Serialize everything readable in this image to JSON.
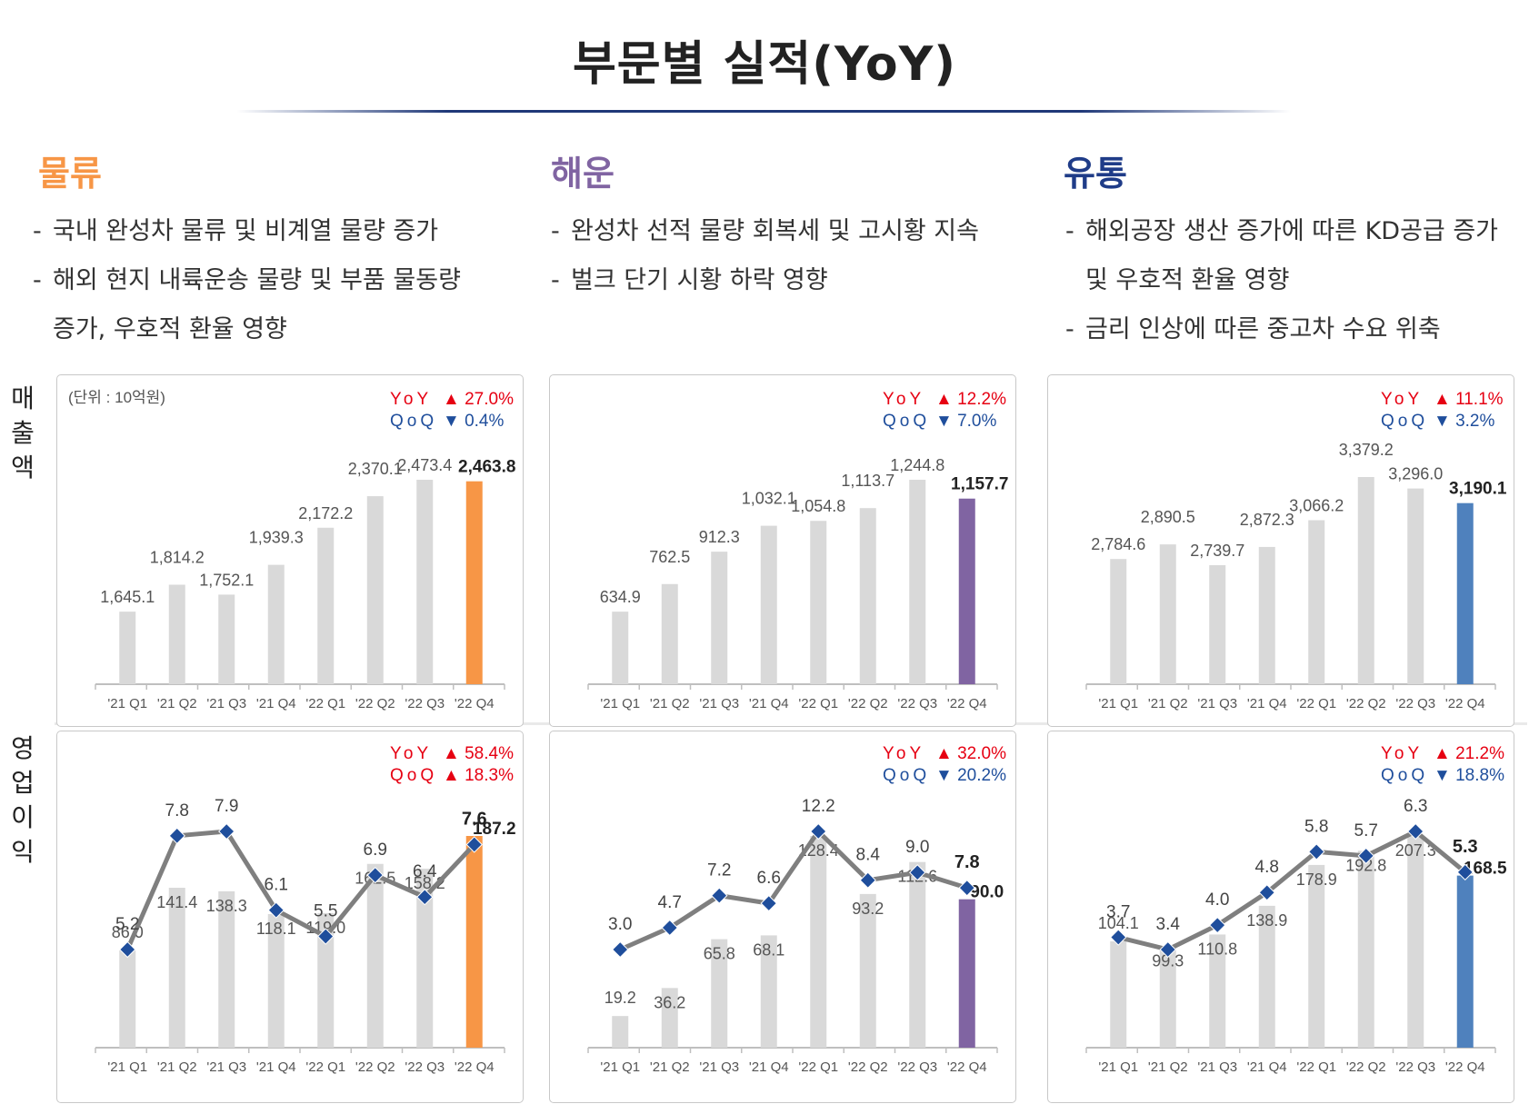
{
  "page": {
    "title": "부문별 실적(YoY)",
    "row_labels": {
      "revenue": "매출액",
      "op_profit": "영업이익"
    },
    "unit_note": "(단위 : 10억원)"
  },
  "segments": [
    {
      "name": "물류",
      "color": "#f79646",
      "bullets": [
        "국내 완성차 물류 및 비계열 물량 증가",
        "해외 현지 내륙운송 물량 및 부품 물동량",
        "증가, 우호적 환율 영향"
      ],
      "bullet_continuation": [
        false,
        false,
        true
      ]
    },
    {
      "name": "해운",
      "color": "#8064a2",
      "bullets": [
        "완성차 선적 물량 회복세 및 고시황 지속",
        "벌크 단기 시황 하락 영향"
      ],
      "bullet_continuation": [
        false,
        false
      ]
    },
    {
      "name": "유통",
      "color": "#1f4e9c",
      "bullets": [
        "해외공장 생산 증가에 따른 KD공급 증가",
        "및 우호적 환율 영향",
        "금리 인상에 따른 중고차 수요 위축"
      ],
      "bullet_continuation": [
        false,
        true,
        false
      ]
    }
  ],
  "chart_data": [
    {
      "id": "logistics-revenue",
      "type": "bar",
      "segment": "물류",
      "categories": [
        "'21 Q1",
        "'21 Q2",
        "'21 Q3",
        "'21 Q4",
        "'22 Q1",
        "'22 Q2",
        "'22 Q3",
        "'22 Q4"
      ],
      "values": [
        1645.1,
        1814.2,
        1752.1,
        1939.3,
        2172.2,
        2370.1,
        2473.4,
        2463.8
      ],
      "value_labels": [
        "1,645.1",
        "1,814.2",
        "1,752.1",
        "1,939.3",
        "2,172.2",
        "2,370.1",
        "2,473.4",
        "2,463.8"
      ],
      "bar_color": "#d9d9d9",
      "highlight_color": "#f79646",
      "yoy_label": "YoY",
      "yoy_dir": "up",
      "yoy_value": "27.0%",
      "qoq_label": "QoQ",
      "qoq_dir": "down",
      "qoq_value": "0.4%"
    },
    {
      "id": "shipping-revenue",
      "type": "bar",
      "segment": "해운",
      "categories": [
        "'21 Q1",
        "'21 Q2",
        "'21 Q3",
        "'21 Q4",
        "'22 Q1",
        "'22 Q2",
        "'22 Q3",
        "'22 Q4"
      ],
      "values": [
        634.9,
        762.5,
        912.3,
        1032.1,
        1054.8,
        1113.7,
        1244.8,
        1157.7
      ],
      "value_labels": [
        "634.9",
        "762.5",
        "912.3",
        "1,032.1",
        "1,054.8",
        "1,113.7",
        "1,244.8",
        "1,157.7"
      ],
      "bar_color": "#d9d9d9",
      "highlight_color": "#8064a2",
      "yoy_label": "YoY",
      "yoy_dir": "up",
      "yoy_value": "12.2%",
      "qoq_label": "QoQ",
      "qoq_dir": "down",
      "qoq_value": "7.0%"
    },
    {
      "id": "distribution-revenue",
      "type": "bar",
      "segment": "유통",
      "categories": [
        "'21 Q1",
        "'21 Q2",
        "'21 Q3",
        "'21 Q4",
        "'22 Q1",
        "'22 Q2",
        "'22 Q3",
        "'22 Q4"
      ],
      "values": [
        2784.6,
        2890.5,
        2739.7,
        2872.3,
        3066.2,
        3379.2,
        3296.0,
        3190.1
      ],
      "value_labels": [
        "2,784.6",
        "2,890.5",
        "2,739.7",
        "2,872.3",
        "3,066.2",
        "3,379.2",
        "3,296.0",
        "3,190.1"
      ],
      "bar_color": "#d9d9d9",
      "highlight_color": "#4f81bd",
      "yoy_label": "YoY",
      "yoy_dir": "up",
      "yoy_value": "11.1%",
      "qoq_label": "QoQ",
      "qoq_dir": "down",
      "qoq_value": "3.2%"
    },
    {
      "id": "logistics-op",
      "type": "bar+line",
      "segment": "물류",
      "categories": [
        "'21 Q1",
        "'21 Q2",
        "'21 Q3",
        "'21 Q4",
        "'22 Q1",
        "'22 Q2",
        "'22 Q3",
        "'22 Q4"
      ],
      "values": [
        86.0,
        141.4,
        138.3,
        118.1,
        119.0,
        162.5,
        158.2,
        187.2
      ],
      "value_labels": [
        "86.0",
        "141.4",
        "138.3",
        "118.1",
        "119.0",
        "162.5",
        "158.2",
        "187.2"
      ],
      "margin": [
        5.2,
        7.8,
        7.9,
        6.1,
        5.5,
        6.9,
        6.4,
        7.6
      ],
      "margin_labels": [
        "5.2",
        "7.8",
        "7.9",
        "6.1",
        "5.5",
        "6.9",
        "6.4",
        "7.6"
      ],
      "bar_color": "#d9d9d9",
      "highlight_color": "#f79646",
      "yoy_label": "YoY",
      "yoy_dir": "up",
      "yoy_value": "58.4%",
      "qoq_label": "QoQ",
      "qoq_dir": "up",
      "qoq_value": "18.3%"
    },
    {
      "id": "shipping-op",
      "type": "bar+line",
      "segment": "해운",
      "categories": [
        "'21 Q1",
        "'21 Q2",
        "'21 Q3",
        "'21 Q4",
        "'22 Q1",
        "'22 Q2",
        "'22 Q3",
        "'22 Q4"
      ],
      "values": [
        19.2,
        36.2,
        65.8,
        68.1,
        128.4,
        93.2,
        112.6,
        90.0
      ],
      "value_labels": [
        "19.2",
        "36.2",
        "65.8",
        "68.1",
        "128.4",
        "93.2",
        "112.6",
        "90.0"
      ],
      "margin": [
        3.0,
        4.7,
        7.2,
        6.6,
        12.2,
        8.4,
        9.0,
        7.8
      ],
      "margin_labels": [
        "3.0",
        "4.7",
        "7.2",
        "6.6",
        "12.2",
        "8.4",
        "9.0",
        "7.8"
      ],
      "bar_color": "#d9d9d9",
      "highlight_color": "#8064a2",
      "yoy_label": "YoY",
      "yoy_dir": "up",
      "yoy_value": "32.0%",
      "qoq_label": "QoQ",
      "qoq_dir": "down",
      "qoq_value": "20.2%"
    },
    {
      "id": "distribution-op",
      "type": "bar+line",
      "segment": "유통",
      "categories": [
        "'21 Q1",
        "'21 Q2",
        "'21 Q3",
        "'21 Q4",
        "'22 Q1",
        "'22 Q2",
        "'22 Q3",
        "'22 Q4"
      ],
      "values": [
        104.1,
        99.3,
        110.8,
        138.9,
        178.9,
        192.8,
        207.3,
        168.5
      ],
      "value_labels": [
        "104.1",
        "99.3",
        "110.8",
        "138.9",
        "178.9",
        "192.8",
        "207.3",
        "168.5"
      ],
      "margin": [
        3.7,
        3.4,
        4.0,
        4.8,
        5.8,
        5.7,
        6.3,
        5.3
      ],
      "margin_labels": [
        "3.7",
        "3.4",
        "4.0",
        "4.8",
        "5.8",
        "5.7",
        "6.3",
        "5.3"
      ],
      "bar_color": "#d9d9d9",
      "highlight_color": "#4f81bd",
      "yoy_label": "YoY",
      "yoy_dir": "up",
      "yoy_value": "21.2%",
      "qoq_label": "QoQ",
      "qoq_dir": "down",
      "qoq_value": "18.8%"
    }
  ],
  "colors": {
    "up": "#e60012",
    "down": "#1f4e9c",
    "line": "#7f7f7f",
    "marker": "#1f4e9c",
    "axis": "#bfbfbf"
  }
}
